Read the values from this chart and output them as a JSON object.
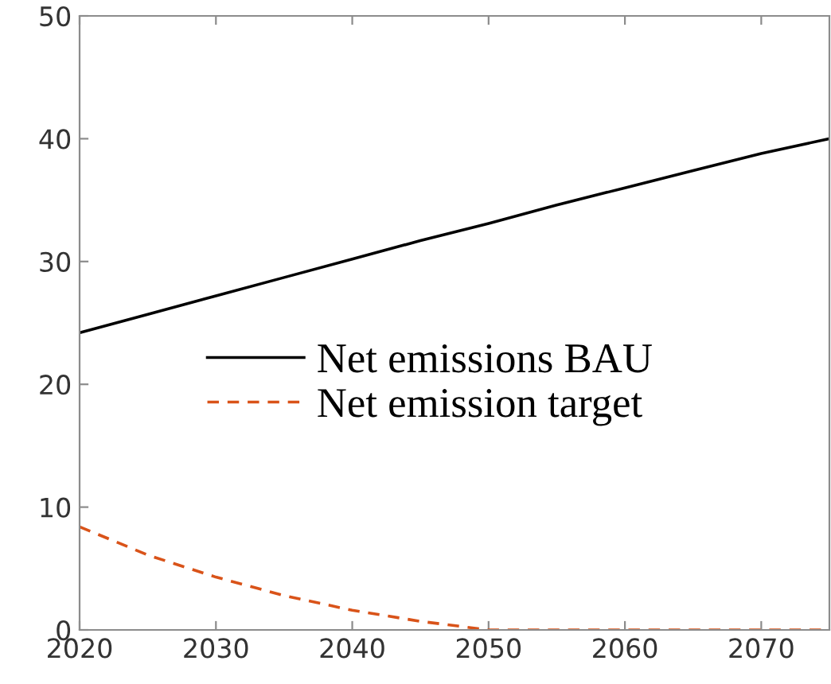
{
  "chart_data": {
    "type": "line",
    "x": [
      2020,
      2025,
      2030,
      2035,
      2040,
      2045,
      2050,
      2055,
      2060,
      2065,
      2070,
      2075
    ],
    "series": [
      {
        "name": "Net emissions BAU",
        "color": "#000000",
        "line_style": "solid",
        "values": [
          24.2,
          25.7,
          27.2,
          28.7,
          30.2,
          31.7,
          33.1,
          34.6,
          36.0,
          37.4,
          38.8,
          40.0
        ]
      },
      {
        "name": "Net emission target",
        "color": "#d95319",
        "line_style": "dashed",
        "values": [
          8.4,
          6.1,
          4.3,
          2.8,
          1.6,
          0.7,
          0,
          0,
          0,
          0,
          0,
          0
        ]
      }
    ],
    "xlim": [
      2020,
      2075
    ],
    "xticks": [
      2020,
      2030,
      2040,
      2050,
      2060,
      2070
    ],
    "ylim": [
      0,
      50
    ],
    "yticks": [
      0,
      10,
      20,
      30,
      40,
      50
    ],
    "grid": false,
    "legend": "center left"
  }
}
